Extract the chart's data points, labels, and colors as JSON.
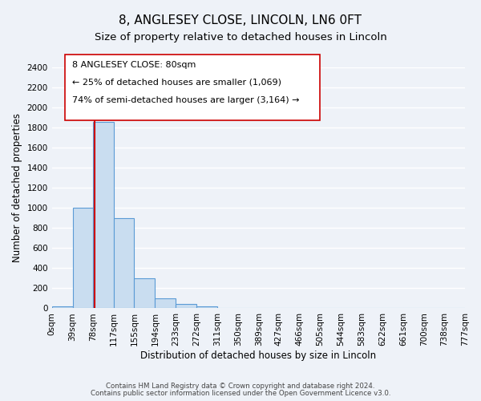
{
  "title": "8, ANGLESEY CLOSE, LINCOLN, LN6 0FT",
  "subtitle": "Size of property relative to detached houses in Lincoln",
  "bar_heights": [
    20,
    1000,
    1860,
    900,
    300,
    100,
    40,
    20,
    0,
    0,
    0,
    0,
    0,
    0,
    0,
    0,
    0,
    0,
    0,
    0
  ],
  "bin_edges": [
    0,
    39,
    78,
    117,
    155,
    194,
    233,
    272,
    311,
    350,
    389,
    427,
    466,
    505,
    544,
    583,
    622,
    661,
    700,
    738,
    777
  ],
  "tick_labels": [
    "0sqm",
    "39sqm",
    "78sqm",
    "117sqm",
    "155sqm",
    "194sqm",
    "233sqm",
    "272sqm",
    "311sqm",
    "350sqm",
    "389sqm",
    "427sqm",
    "466sqm",
    "505sqm",
    "544sqm",
    "583sqm",
    "622sqm",
    "661sqm",
    "700sqm",
    "738sqm",
    "777sqm"
  ],
  "bar_color": "#c9ddf0",
  "bar_edge_color": "#5b9bd5",
  "ylabel": "Number of detached properties",
  "xlabel": "Distribution of detached houses by size in Lincoln",
  "ylim": [
    0,
    2400
  ],
  "yticks": [
    0,
    200,
    400,
    600,
    800,
    1000,
    1200,
    1400,
    1600,
    1800,
    2000,
    2200,
    2400
  ],
  "property_line_x": 80,
  "property_line_color": "#cc0000",
  "annotation_line1": "8 ANGLESEY CLOSE: 80sqm",
  "annotation_line2": "← 25% of detached houses are smaller (1,069)",
  "annotation_line3": "74% of semi-detached houses are larger (3,164) →",
  "footer_text1": "Contains HM Land Registry data © Crown copyright and database right 2024.",
  "footer_text2": "Contains public sector information licensed under the Open Government Licence v3.0.",
  "background_color": "#eef2f8",
  "grid_color": "#ffffff",
  "title_fontsize": 11,
  "subtitle_fontsize": 9.5,
  "axis_label_fontsize": 8.5,
  "tick_fontsize": 7.5
}
